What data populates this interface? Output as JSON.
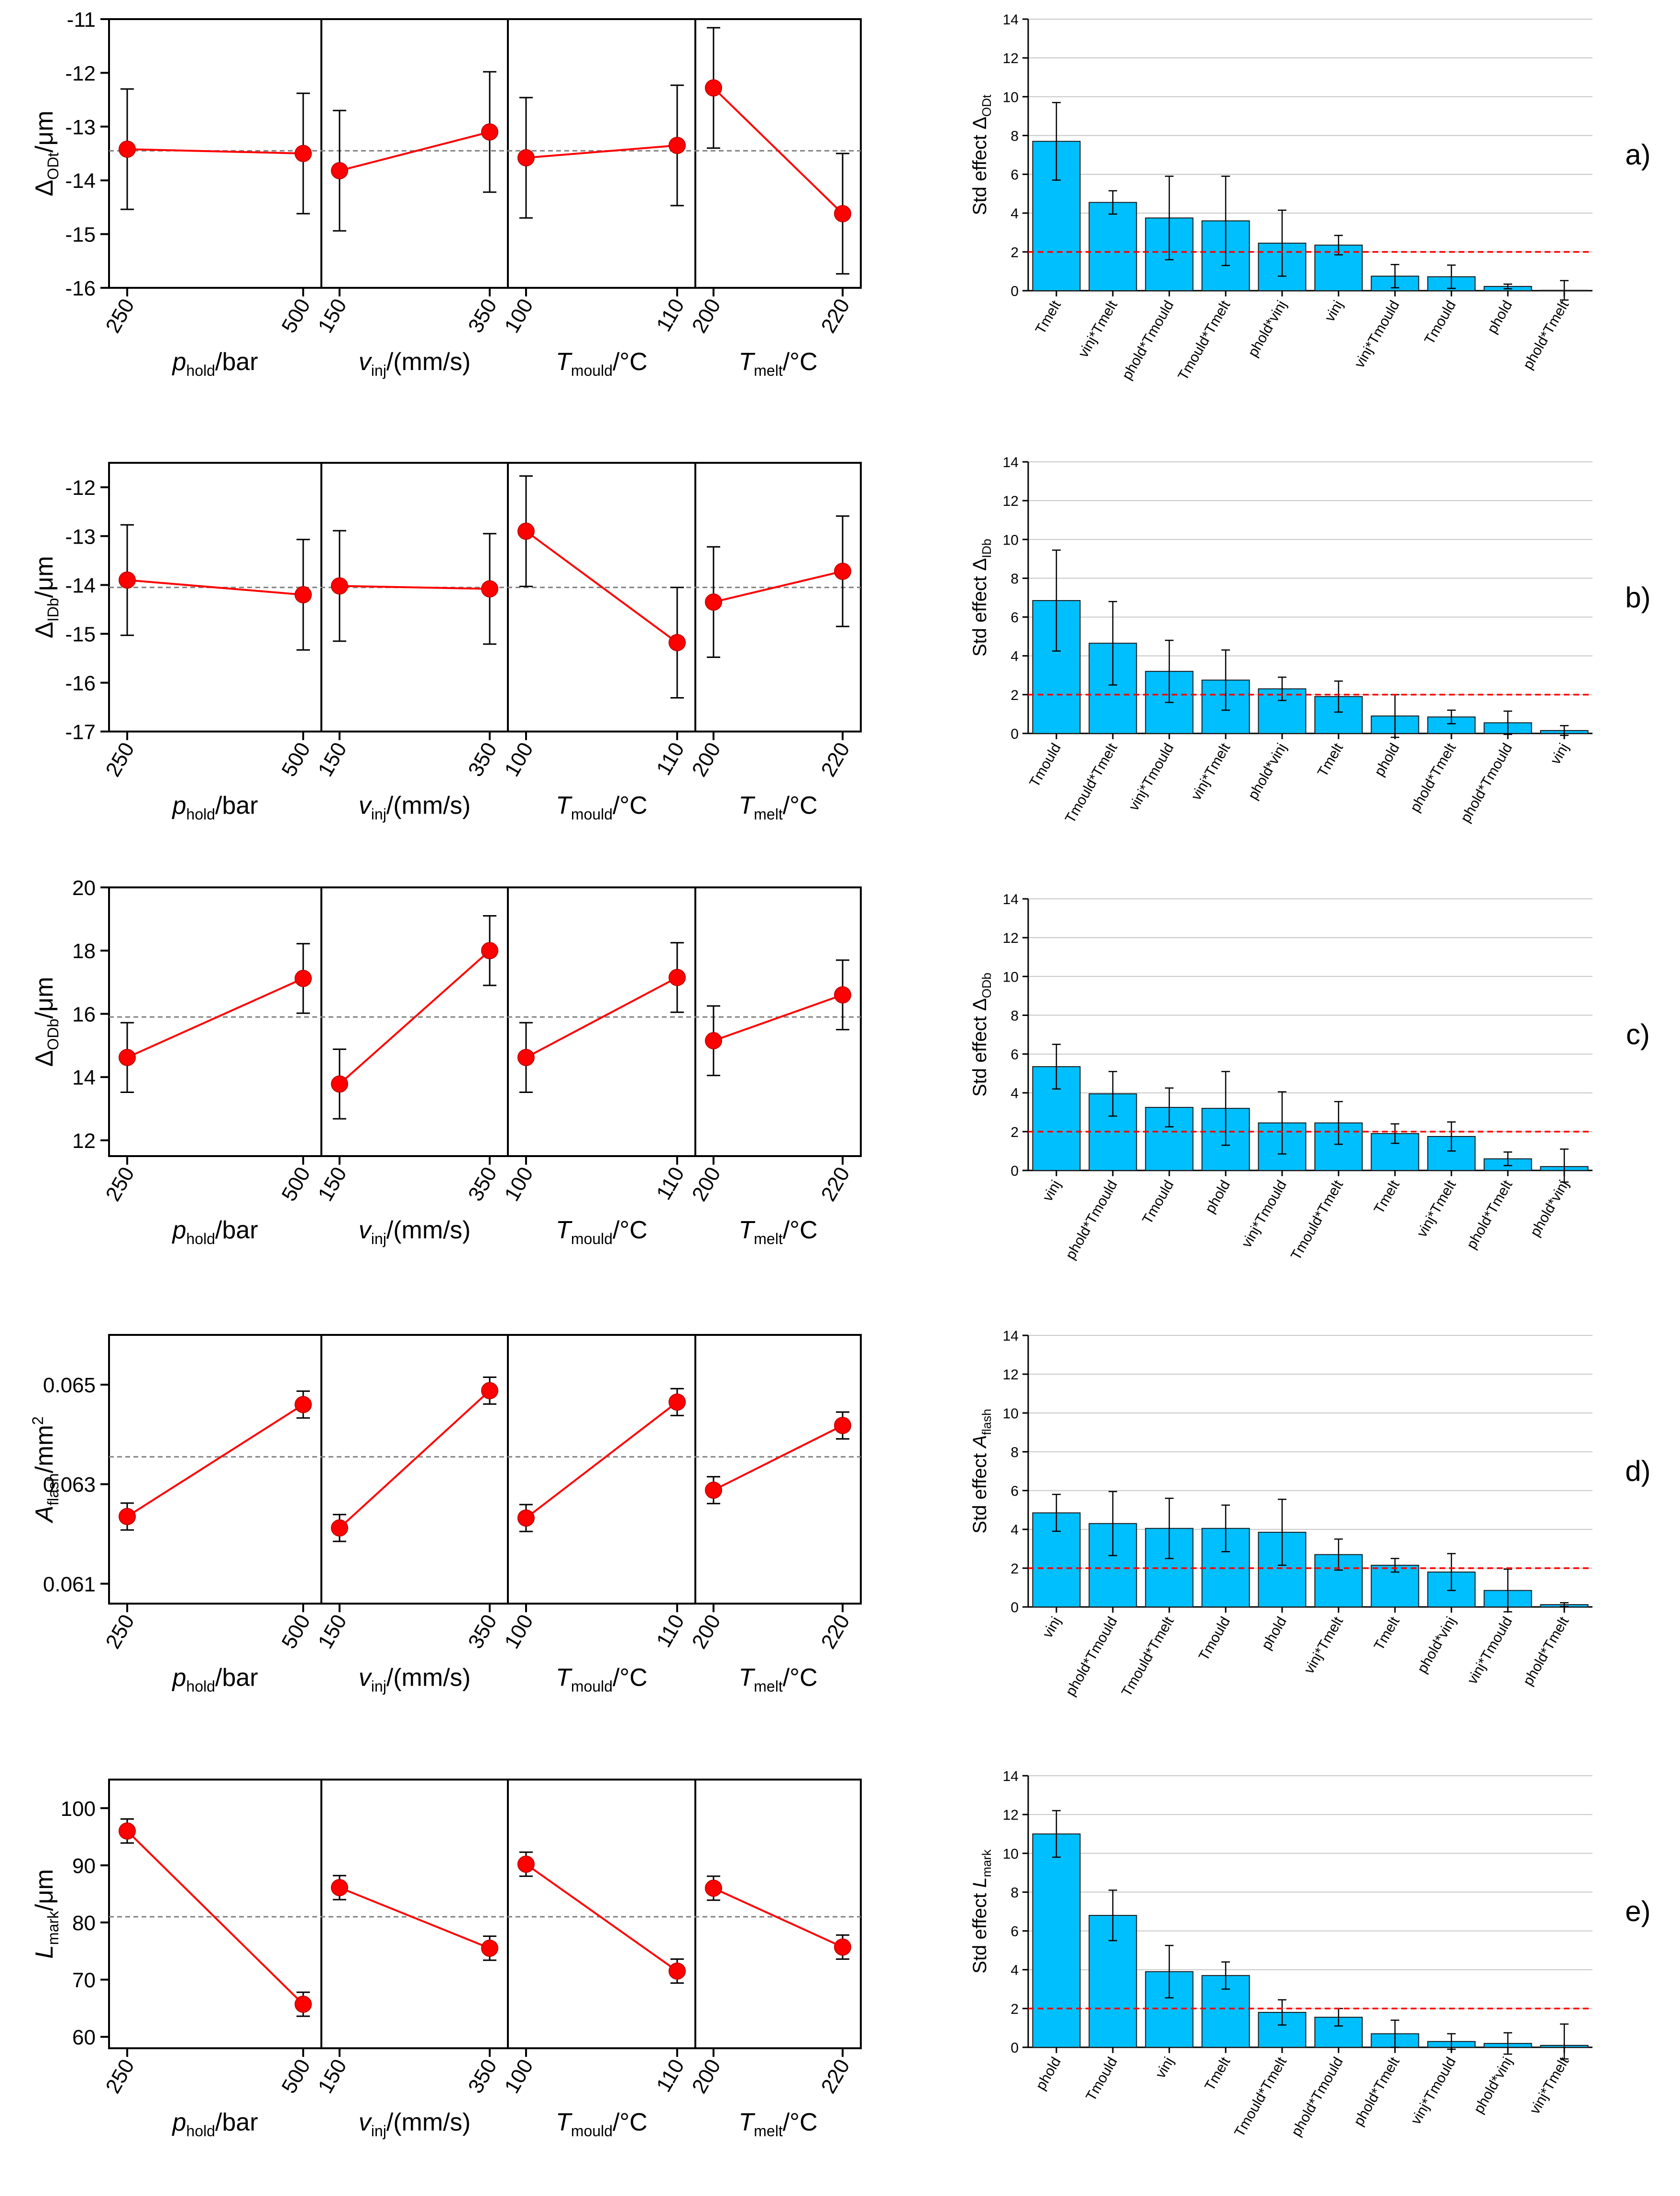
{
  "chart_data": [
    {
      "panel": "a",
      "type": "line",
      "ylabel": {
        "main": "Δ",
        "sub": "ODt",
        "rest": "/μm"
      },
      "ylim": [
        -16,
        -11
      ],
      "yticks": [
        "-11",
        "-12",
        "-13",
        "-14",
        "-15",
        "-16"
      ],
      "ytick_values": [
        -11,
        -12,
        -13,
        -14,
        -15,
        -16
      ],
      "mean": -13.45,
      "factors": [
        {
          "label_main": "p",
          "label_sub": "hold",
          "label_rest": "/bar",
          "italic": true,
          "levels": [
            "250",
            "500"
          ],
          "values": [
            -13.42,
            -13.5
          ],
          "errors": [
            1.12,
            1.12
          ]
        },
        {
          "label_main": "v",
          "label_sub": "inj",
          "label_rest": "/(mm/s)",
          "italic": true,
          "levels": [
            "150",
            "350"
          ],
          "values": [
            -13.82,
            -13.1
          ],
          "errors": [
            1.12,
            1.12
          ]
        },
        {
          "label_main": "T",
          "label_sub": "mould",
          "label_rest": "/°C",
          "italic": true,
          "levels": [
            "100",
            "110"
          ],
          "values": [
            -13.58,
            -13.35
          ],
          "errors": [
            1.12,
            1.12
          ]
        },
        {
          "label_main": "T",
          "label_sub": "melt",
          "label_rest": "/°C",
          "italic": true,
          "levels": [
            "200",
            "220"
          ],
          "values": [
            -12.28,
            -14.62
          ],
          "errors": [
            1.12,
            1.12
          ]
        }
      ]
    },
    {
      "panel": "b",
      "type": "line",
      "ylabel": {
        "main": "Δ",
        "sub": "IDb",
        "rest": "/μm"
      },
      "ylim": [
        -17,
        -11.5
      ],
      "yticks": [
        "-12",
        "-13",
        "-14",
        "-15",
        "-16",
        "-17"
      ],
      "ytick_values": [
        -12,
        -13,
        -14,
        -15,
        -16,
        -17
      ],
      "mean": -14.05,
      "factors": [
        {
          "label_main": "p",
          "label_sub": "hold",
          "label_rest": "/bar",
          "italic": true,
          "levels": [
            "250",
            "500"
          ],
          "values": [
            -13.9,
            -14.2
          ],
          "errors": [
            1.13,
            1.13
          ]
        },
        {
          "label_main": "v",
          "label_sub": "inj",
          "label_rest": "/(mm/s)",
          "italic": true,
          "levels": [
            "150",
            "350"
          ],
          "values": [
            -14.02,
            -14.08
          ],
          "errors": [
            1.13,
            1.13
          ]
        },
        {
          "label_main": "T",
          "label_sub": "mould",
          "label_rest": "/°C",
          "italic": true,
          "levels": [
            "100",
            "110"
          ],
          "values": [
            -12.9,
            -15.18
          ],
          "errors": [
            1.13,
            1.13
          ]
        },
        {
          "label_main": "T",
          "label_sub": "melt",
          "label_rest": "/°C",
          "italic": true,
          "levels": [
            "200",
            "220"
          ],
          "values": [
            -14.35,
            -13.72
          ],
          "errors": [
            1.13,
            1.13
          ]
        }
      ]
    },
    {
      "panel": "c",
      "type": "line",
      "ylabel": {
        "main": "Δ",
        "sub": "ODb",
        "rest": "/μm"
      },
      "ylim": [
        11.5,
        20
      ],
      "yticks": [
        "20",
        "18",
        "16",
        "14",
        "12"
      ],
      "ytick_values": [
        20,
        18,
        16,
        14,
        12
      ],
      "mean": 15.9,
      "factors": [
        {
          "label_main": "p",
          "label_sub": "hold",
          "label_rest": "/bar",
          "italic": true,
          "levels": [
            "250",
            "500"
          ],
          "values": [
            14.62,
            17.12
          ],
          "errors": [
            1.1,
            1.1
          ]
        },
        {
          "label_main": "v",
          "label_sub": "inj",
          "label_rest": "/(mm/s)",
          "italic": true,
          "levels": [
            "150",
            "350"
          ],
          "values": [
            13.78,
            18.0
          ],
          "errors": [
            1.1,
            1.1
          ]
        },
        {
          "label_main": "T",
          "label_sub": "mould",
          "label_rest": "/°C",
          "italic": true,
          "levels": [
            "100",
            "110"
          ],
          "values": [
            14.62,
            17.15
          ],
          "errors": [
            1.1,
            1.1
          ]
        },
        {
          "label_main": "T",
          "label_sub": "melt",
          "label_rest": "/°C",
          "italic": true,
          "levels": [
            "200",
            "220"
          ],
          "values": [
            15.15,
            16.6
          ],
          "errors": [
            1.1,
            1.1
          ]
        }
      ]
    },
    {
      "panel": "d",
      "type": "line",
      "ylabel": {
        "main": "A",
        "sub": "flash",
        "rest": "/mm",
        "sup": "2"
      },
      "ylim": [
        0.0606,
        0.066
      ],
      "yticks": [
        "0.065",
        "0.063",
        "0.061"
      ],
      "ytick_values": [
        0.065,
        0.063,
        0.061
      ],
      "mean": 0.06355,
      "factors": [
        {
          "label_main": "p",
          "label_sub": "hold",
          "label_rest": "/bar",
          "italic": true,
          "levels": [
            "250",
            "500"
          ],
          "values": [
            0.06235,
            0.0646
          ],
          "errors": [
            0.00027,
            0.00027
          ]
        },
        {
          "label_main": "v",
          "label_sub": "inj",
          "label_rest": "/(mm/s)",
          "italic": true,
          "levels": [
            "150",
            "350"
          ],
          "values": [
            0.06212,
            0.06488
          ],
          "errors": [
            0.00027,
            0.00027
          ]
        },
        {
          "label_main": "T",
          "label_sub": "mould",
          "label_rest": "/°C",
          "italic": true,
          "levels": [
            "100",
            "110"
          ],
          "values": [
            0.06232,
            0.06465
          ],
          "errors": [
            0.00027,
            0.00027
          ]
        },
        {
          "label_main": "T",
          "label_sub": "melt",
          "label_rest": "/°C",
          "italic": true,
          "levels": [
            "200",
            "220"
          ],
          "values": [
            0.06288,
            0.06418
          ],
          "errors": [
            0.00027,
            0.00027
          ]
        }
      ]
    },
    {
      "panel": "e",
      "type": "line",
      "ylabel": {
        "main": "L",
        "sub": "mark",
        "rest": "/μm"
      },
      "ylim": [
        58,
        105
      ],
      "yticks": [
        "100",
        "90",
        "80",
        "70",
        "60"
      ],
      "ytick_values": [
        100,
        90,
        80,
        70,
        60
      ],
      "mean": 81,
      "factors": [
        {
          "label_main": "p",
          "label_sub": "hold",
          "label_rest": "/bar",
          "italic": true,
          "levels": [
            "250",
            "500"
          ],
          "values": [
            96.0,
            65.7
          ],
          "errors": [
            2.1,
            2.1
          ]
        },
        {
          "label_main": "v",
          "label_sub": "inj",
          "label_rest": "/(mm/s)",
          "italic": true,
          "levels": [
            "150",
            "350"
          ],
          "values": [
            86.1,
            75.5
          ],
          "errors": [
            2.1,
            2.1
          ]
        },
        {
          "label_main": "T",
          "label_sub": "mould",
          "label_rest": "/°C",
          "italic": true,
          "levels": [
            "100",
            "110"
          ],
          "values": [
            90.2,
            71.5
          ],
          "errors": [
            2.1,
            2.1
          ]
        },
        {
          "label_main": "T",
          "label_sub": "melt",
          "label_rest": "/°C",
          "italic": true,
          "levels": [
            "200",
            "220"
          ],
          "values": [
            86.0,
            75.7
          ],
          "errors": [
            2.1,
            2.1
          ]
        }
      ]
    }
  ],
  "bar_charts": [
    {
      "panel": "a",
      "type": "bar",
      "panel_label": "a)",
      "ylabel": {
        "main": "Std effect Δ",
        "sub": "ODt",
        "italic": false
      },
      "ylim": [
        0,
        14
      ],
      "yticks": [
        "0",
        "2",
        "4",
        "6",
        "8",
        "10",
        "12",
        "14"
      ],
      "ytick_values": [
        0,
        2,
        4,
        6,
        8,
        10,
        12,
        14
      ],
      "threshold": 2.0,
      "categories": [
        "Tmelt",
        "vinj*Tmelt",
        "phold*Tmould",
        "Tmould*Tmelt",
        "phold*vinj",
        "vinj",
        "vinj*Tmould",
        "Tmould",
        "phold",
        "phold*Tmelt"
      ],
      "values": [
        7.7,
        4.55,
        3.75,
        3.6,
        2.45,
        2.35,
        0.75,
        0.72,
        0.22,
        0.02
      ],
      "errors": [
        2.0,
        0.6,
        2.15,
        2.3,
        1.7,
        0.5,
        0.6,
        0.6,
        0.12,
        0.5
      ]
    },
    {
      "panel": "b",
      "type": "bar",
      "panel_label": "b)",
      "ylabel": {
        "main": "Std effect Δ",
        "sub": "IDb",
        "italic": false
      },
      "ylim": [
        0,
        14
      ],
      "yticks": [
        "0",
        "2",
        "4",
        "6",
        "8",
        "10",
        "12",
        "14"
      ],
      "ytick_values": [
        0,
        2,
        4,
        6,
        8,
        10,
        12,
        14
      ],
      "threshold": 2.0,
      "categories": [
        "Tmould",
        "Tmould*Tmelt",
        "vinj*Tmould",
        "vinj*Tmelt",
        "phold*vinj",
        "Tmelt",
        "phold",
        "phold*Tmelt",
        "phold*Tmould",
        "vinj"
      ],
      "values": [
        6.85,
        4.65,
        3.2,
        2.75,
        2.3,
        1.9,
        0.9,
        0.85,
        0.55,
        0.15
      ],
      "errors": [
        2.6,
        2.15,
        1.6,
        1.55,
        0.6,
        0.8,
        1.1,
        0.35,
        0.6,
        0.25
      ]
    },
    {
      "panel": "c",
      "type": "bar",
      "panel_label": "c)",
      "ylabel": {
        "main": "Std effect Δ",
        "sub": "ODb",
        "italic": false
      },
      "ylim": [
        0,
        14
      ],
      "yticks": [
        "0",
        "2",
        "4",
        "6",
        "8",
        "10",
        "12",
        "14"
      ],
      "ytick_values": [
        0,
        2,
        4,
        6,
        8,
        10,
        12,
        14
      ],
      "threshold": 2.0,
      "categories": [
        "vinj",
        "phold*Tmould",
        "Tmould",
        "phold",
        "vinj*Tmould",
        "Tmould*Tmelt",
        "Tmelt",
        "vinj*Tmelt",
        "phold*Tmelt",
        "phold*vinj"
      ],
      "values": [
        5.35,
        3.95,
        3.25,
        3.2,
        2.45,
        2.45,
        1.9,
        1.75,
        0.6,
        0.2
      ],
      "errors": [
        1.15,
        1.15,
        1.0,
        1.9,
        1.6,
        1.1,
        0.5,
        0.75,
        0.35,
        0.9
      ]
    },
    {
      "panel": "d",
      "type": "bar",
      "panel_label": "d)",
      "ylabel": {
        "main": "Std effect ",
        "sub": "flash",
        "italic_main": "A",
        "italic": true
      },
      "ylim": [
        0,
        14
      ],
      "yticks": [
        "0",
        "2",
        "4",
        "6",
        "8",
        "10",
        "12",
        "14"
      ],
      "ytick_values": [
        0,
        2,
        4,
        6,
        8,
        10,
        12,
        14
      ],
      "threshold": 2.0,
      "categories": [
        "vinj",
        "phold*Tmould",
        "Tmould*Tmelt",
        "Tmould",
        "phold",
        "vinj*Tmelt",
        "Tmelt",
        "phold*vinj",
        "vinj*Tmould",
        "phold*Tmelt"
      ],
      "values": [
        4.85,
        4.3,
        4.05,
        4.05,
        3.85,
        2.7,
        2.15,
        1.8,
        0.85,
        0.12
      ],
      "errors": [
        0.95,
        1.65,
        1.55,
        1.2,
        1.7,
        0.8,
        0.35,
        0.95,
        1.1,
        0.1
      ]
    },
    {
      "panel": "e",
      "type": "bar",
      "panel_label": "e)",
      "ylabel": {
        "main": "Std effect ",
        "sub": "mark",
        "italic_main": "L",
        "italic": true
      },
      "ylim": [
        0,
        14
      ],
      "yticks": [
        "0",
        "2",
        "4",
        "6",
        "8",
        "10",
        "12",
        "14"
      ],
      "ytick_values": [
        0,
        2,
        4,
        6,
        8,
        10,
        12,
        14
      ],
      "threshold": 2.0,
      "categories": [
        "phold",
        "Tmould",
        "vinj",
        "Tmelt",
        "Tmould*Tmelt",
        "phold*Tmould",
        "phold*Tmelt",
        "vinj*Tmould",
        "phold*vinj",
        "vinj*Tmelt"
      ],
      "values": [
        11.0,
        6.8,
        3.9,
        3.7,
        1.8,
        1.55,
        0.7,
        0.3,
        0.2,
        0.1
      ],
      "errors": [
        1.2,
        1.3,
        1.35,
        0.7,
        0.65,
        0.45,
        0.7,
        0.4,
        0.55,
        1.1
      ]
    }
  ],
  "colors": {
    "line": "#ff0000",
    "marker": "#ff0000",
    "bar": "#00bfff",
    "bar_stroke": "#1a1a1a",
    "threshold": "#ff0000",
    "mean": "#808080",
    "grid": "#c8c8c8"
  }
}
